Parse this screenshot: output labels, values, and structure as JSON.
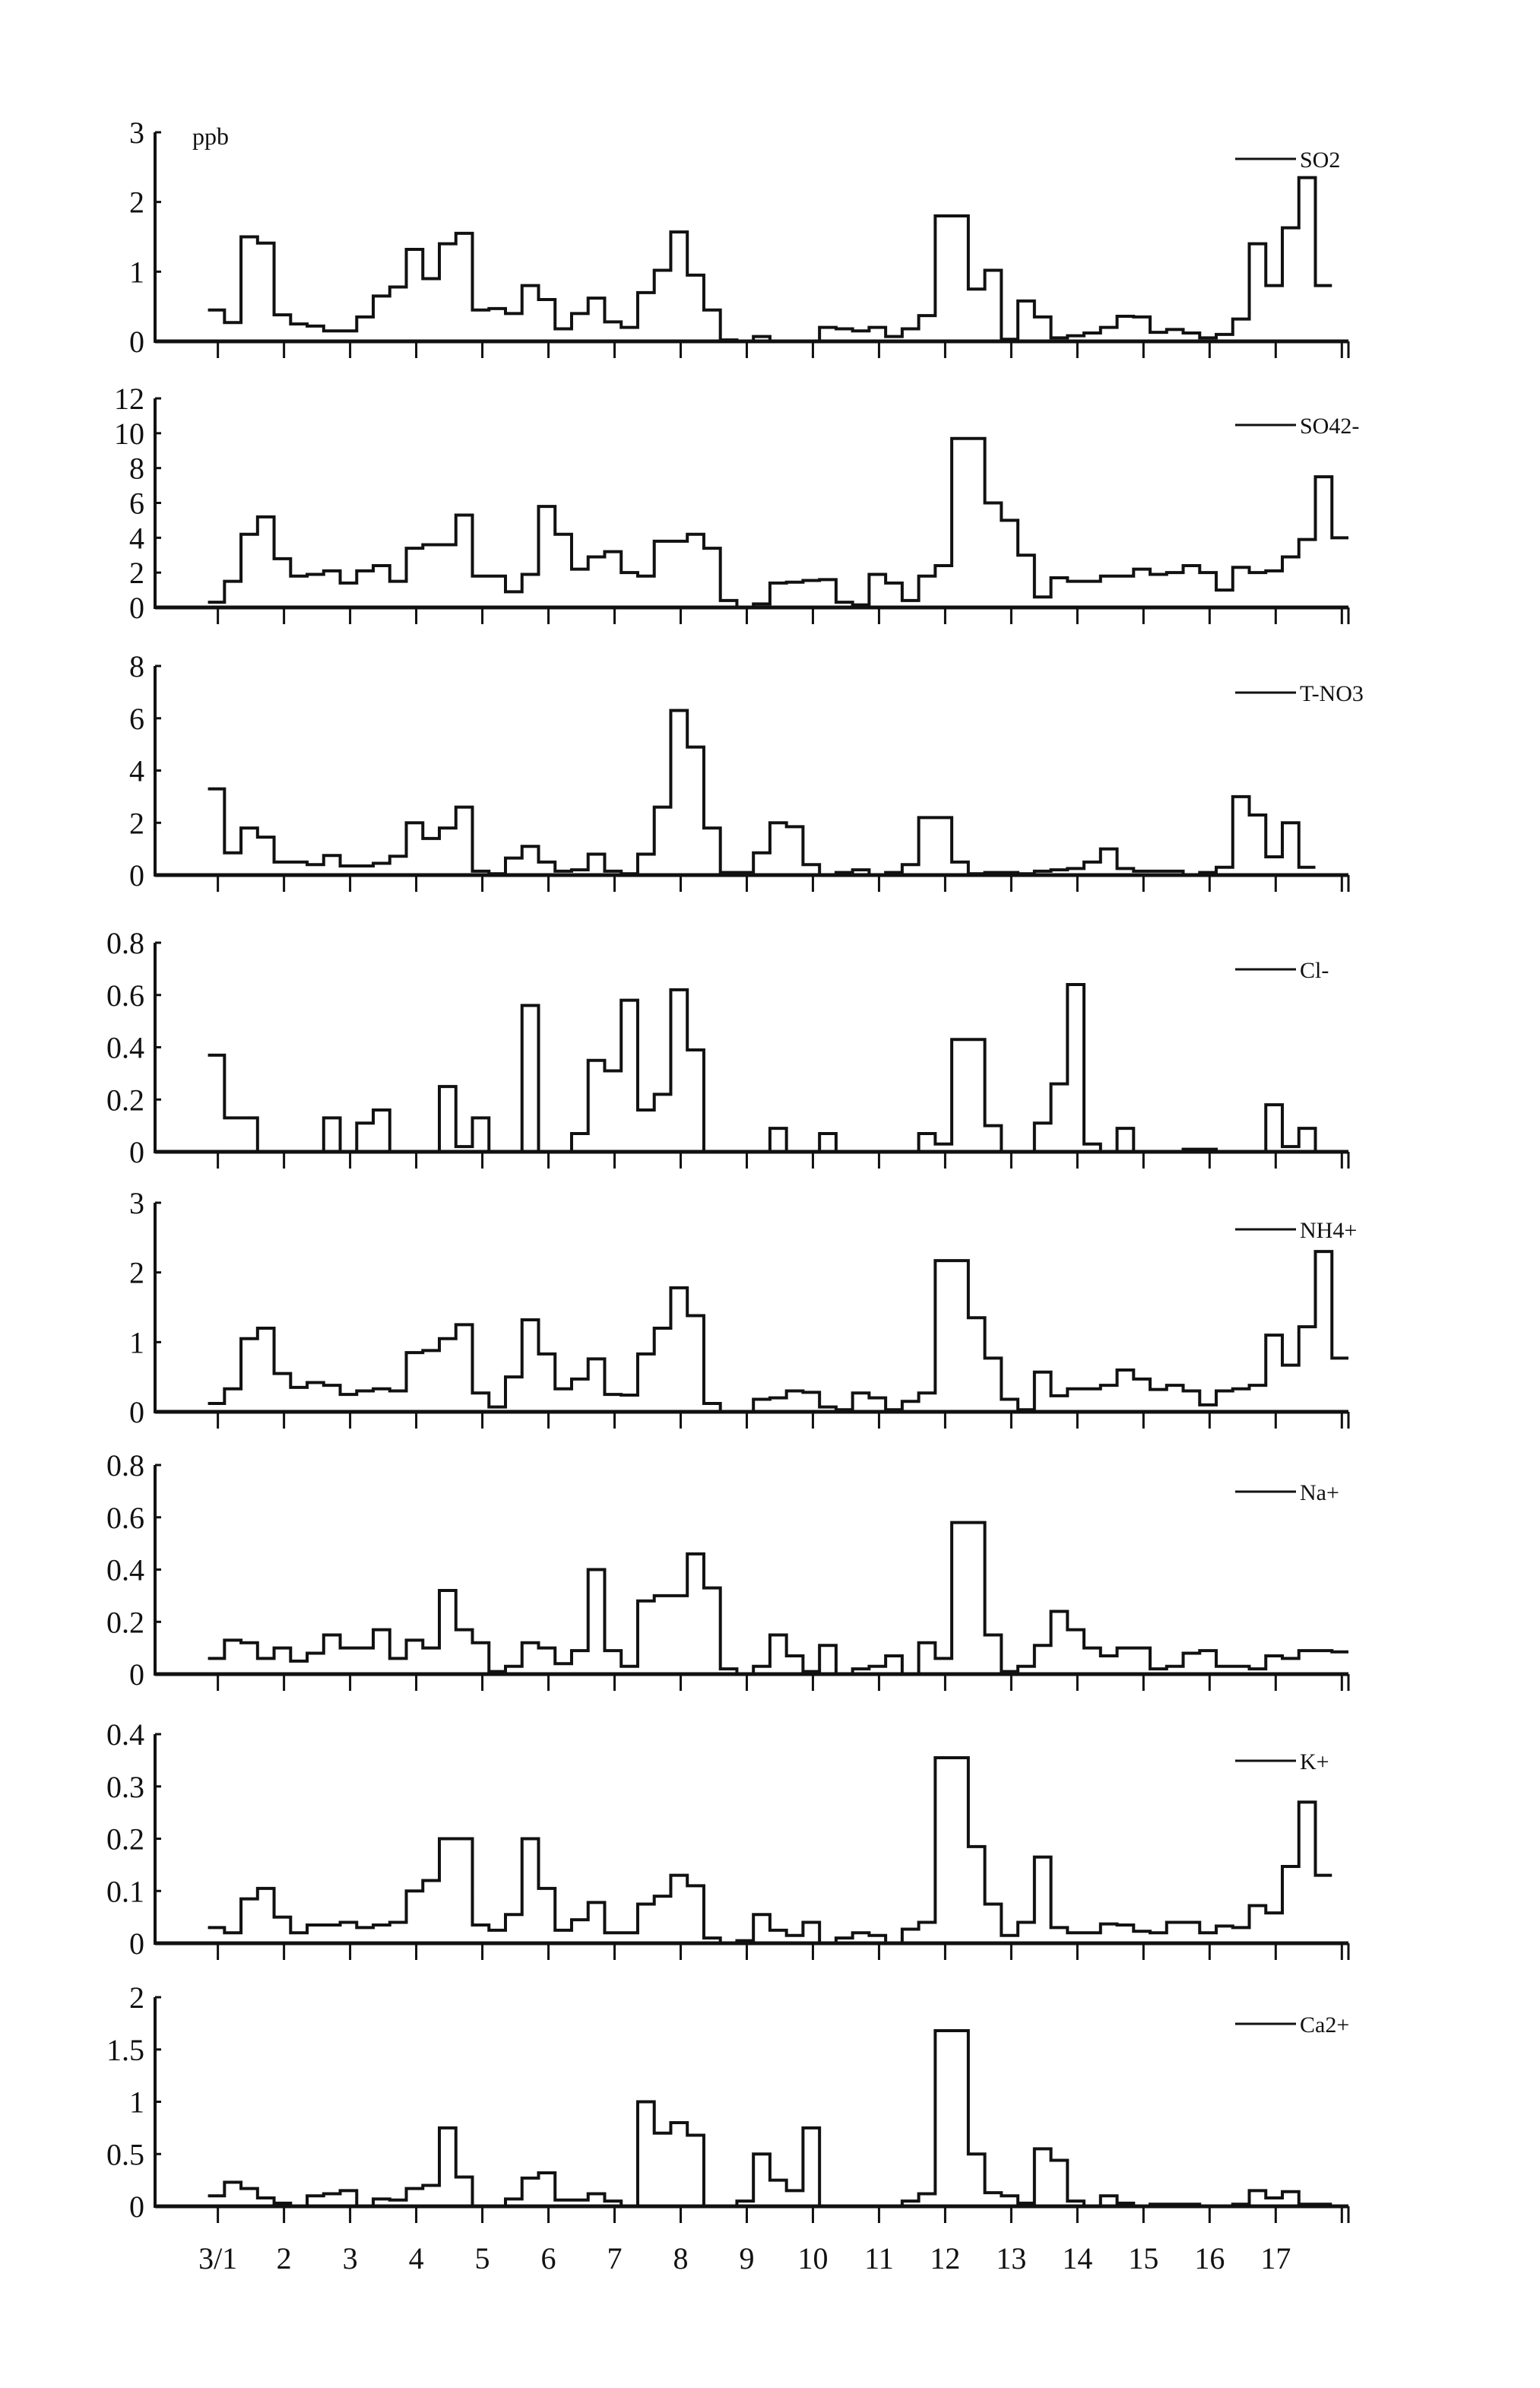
{
  "chart_data": {
    "type": "line",
    "style": "step",
    "y_unit_label": "ppb",
    "x_tick_labels": [
      "3/1",
      "2",
      "3",
      "4",
      "5",
      "6",
      "7",
      "8",
      "9",
      "10",
      "11",
      "12",
      "13",
      "14",
      "15",
      "16",
      "17"
    ],
    "x_ticks": [
      1,
      2,
      3,
      4,
      5,
      6,
      7,
      8,
      9,
      10,
      11,
      12,
      13,
      14,
      15,
      16,
      17,
      18
    ],
    "xlim": [
      0.05,
      18.1
    ],
    "x_start": 0.85,
    "x_step_days": 0.25,
    "grid": false,
    "legend_placement": "top-right",
    "line_color": "#111111",
    "panels": [
      {
        "name": "SO2",
        "ylim": [
          0,
          3
        ],
        "yticks": [
          0,
          1,
          2,
          3
        ],
        "ytick_labels": [
          "0",
          "1",
          "2",
          "3"
        ],
        "values": [
          0.45,
          0.27,
          1.5,
          1.41,
          0.38,
          0.25,
          0.22,
          0.15,
          0.15,
          0.35,
          0.65,
          0.78,
          1.32,
          0.9,
          1.4,
          1.55,
          0.45,
          0.47,
          0.4,
          0.8,
          0.6,
          0.18,
          0.4,
          0.62,
          0.28,
          0.2,
          0.7,
          1.02,
          1.57,
          0.95,
          0.45,
          0.02,
          0,
          0.07,
          0,
          0,
          0,
          0.2,
          0.18,
          0.15,
          0.2,
          0.07,
          0.18,
          0.37,
          1.8,
          1.8,
          0.75,
          1.02,
          0.03,
          0.58,
          0.35,
          0.05,
          0.08,
          0.12,
          0.2,
          0.36,
          0.35,
          0.13,
          0.17,
          0.12,
          0.05,
          0.1,
          0.32,
          1.4,
          0.8,
          1.63,
          2.35,
          0.8
        ]
      },
      {
        "name": "SO42-",
        "ylim": [
          0,
          12
        ],
        "yticks": [
          0,
          2,
          4,
          6,
          8,
          10,
          12
        ],
        "ytick_labels": [
          "0",
          "2",
          "4",
          "6",
          "8",
          "10",
          "12"
        ],
        "values": [
          0.3,
          1.5,
          4.2,
          5.2,
          2.8,
          1.8,
          1.9,
          2.1,
          1.4,
          2.1,
          2.4,
          1.5,
          3.4,
          3.6,
          3.6,
          5.3,
          1.8,
          1.8,
          0.9,
          1.9,
          5.8,
          4.2,
          2.2,
          2.9,
          3.2,
          2.0,
          1.8,
          3.8,
          3.8,
          4.2,
          3.4,
          0.4,
          0,
          0.2,
          1.4,
          1.45,
          1.55,
          1.6,
          0.3,
          0.15,
          1.9,
          1.4,
          0.4,
          1.8,
          2.4,
          9.7,
          9.7,
          6.0,
          5.0,
          3.0,
          0.6,
          1.7,
          1.5,
          1.5,
          1.8,
          1.8,
          2.2,
          1.9,
          2.0,
          2.4,
          2.0,
          1.0,
          2.3,
          2.0,
          2.1,
          2.9,
          3.9,
          7.5,
          4.0
        ]
      },
      {
        "name": "T-NO3",
        "ylim": [
          0,
          8
        ],
        "yticks": [
          0,
          2,
          4,
          6,
          8
        ],
        "ytick_labels": [
          "0",
          "2",
          "4",
          "6",
          "8"
        ],
        "values": [
          3.3,
          0.85,
          1.8,
          1.45,
          0.5,
          0.5,
          0.4,
          0.75,
          0.35,
          0.35,
          0.45,
          0.72,
          2.0,
          1.4,
          1.8,
          2.6,
          0.15,
          0.05,
          0.65,
          1.1,
          0.5,
          0.15,
          0.2,
          0.8,
          0.15,
          0.05,
          0.8,
          2.6,
          6.3,
          4.9,
          1.8,
          0.1,
          0.1,
          0.85,
          2.0,
          1.85,
          0.4,
          0.0,
          0.1,
          0.2,
          0.0,
          0.1,
          0.4,
          2.2,
          2.2,
          0.5,
          0.05,
          0.1,
          0.1,
          0.05,
          0.15,
          0.2,
          0.25,
          0.5,
          1.0,
          0.25,
          0.15,
          0.15,
          0.15,
          0.0,
          0.1,
          0.3,
          3.0,
          2.3,
          0.7,
          2.0,
          0.3
        ]
      },
      {
        "name": "Cl-",
        "ylim": [
          0,
          0.8
        ],
        "yticks": [
          0,
          0.2,
          0.4,
          0.6,
          0.8
        ],
        "ytick_labels": [
          "0",
          "0.2",
          "0.4",
          "0.6",
          "0.8"
        ],
        "values": [
          0.37,
          0.13,
          0.13,
          0,
          0,
          0,
          0,
          0.13,
          0,
          0.11,
          0.16,
          0,
          0,
          0,
          0.25,
          0.02,
          0.13,
          0,
          0,
          0.56,
          0,
          0,
          0.07,
          0.35,
          0.31,
          0.58,
          0.16,
          0.22,
          0.62,
          0.39,
          0,
          0,
          0,
          0,
          0.09,
          0,
          0,
          0.07,
          0,
          0,
          0,
          0,
          0,
          0.07,
          0.03,
          0.43,
          0.43,
          0.1,
          0,
          0,
          0.11,
          0.26,
          0.64,
          0.03,
          0,
          0.09,
          0,
          0,
          0,
          0.01,
          0.01,
          0,
          0,
          0,
          0.18,
          0.02,
          0.09,
          0,
          0
        ]
      },
      {
        "name": "NH4+",
        "ylim": [
          0,
          3
        ],
        "yticks": [
          0,
          1,
          2,
          3
        ],
        "ytick_labels": [
          "0",
          "1",
          "2",
          "3"
        ],
        "values": [
          0.12,
          0.33,
          1.05,
          1.2,
          0.55,
          0.35,
          0.42,
          0.38,
          0.25,
          0.3,
          0.33,
          0.3,
          0.85,
          0.88,
          1.05,
          1.25,
          0.27,
          0.07,
          0.5,
          1.32,
          0.83,
          0.33,
          0.47,
          0.76,
          0.25,
          0.24,
          0.83,
          1.2,
          1.78,
          1.38,
          0.12,
          0,
          0,
          0.18,
          0.2,
          0.3,
          0.28,
          0.07,
          0.03,
          0.27,
          0.2,
          0.03,
          0.15,
          0.27,
          2.17,
          2.17,
          1.35,
          0.77,
          0.18,
          0.03,
          0.57,
          0.23,
          0.33,
          0.33,
          0.38,
          0.6,
          0.47,
          0.32,
          0.38,
          0.3,
          0.1,
          0.3,
          0.33,
          0.38,
          1.1,
          0.67,
          1.22,
          2.3,
          0.77
        ]
      },
      {
        "name": "Na+",
        "ylim": [
          0,
          0.8
        ],
        "yticks": [
          0,
          0.2,
          0.4,
          0.6,
          0.8
        ],
        "ytick_labels": [
          "0",
          "0.2",
          "0.4",
          "0.6",
          "0.8"
        ],
        "values": [
          0.06,
          0.13,
          0.12,
          0.06,
          0.1,
          0.05,
          0.08,
          0.15,
          0.1,
          0.1,
          0.17,
          0.06,
          0.13,
          0.1,
          0.32,
          0.17,
          0.12,
          0.01,
          0.03,
          0.12,
          0.1,
          0.04,
          0.09,
          0.4,
          0.09,
          0.03,
          0.28,
          0.3,
          0.3,
          0.46,
          0.33,
          0.02,
          0,
          0.03,
          0.15,
          0.07,
          0.01,
          0.11,
          0,
          0.02,
          0.03,
          0.07,
          0,
          0.12,
          0.06,
          0.58,
          0.58,
          0.15,
          0.01,
          0.03,
          0.11,
          0.24,
          0.17,
          0.1,
          0.07,
          0.1,
          0.1,
          0.02,
          0.03,
          0.08,
          0.09,
          0.03,
          0.03,
          0.02,
          0.07,
          0.06,
          0.09,
          0.09,
          0.085
        ]
      },
      {
        "name": "K+",
        "ylim": [
          0,
          0.4
        ],
        "yticks": [
          0,
          0.1,
          0.2,
          0.3,
          0.4
        ],
        "ytick_labels": [
          "0",
          "0.1",
          "0.2",
          "0.3",
          "0.4"
        ],
        "values": [
          0.03,
          0.02,
          0.085,
          0.105,
          0.05,
          0.02,
          0.035,
          0.035,
          0.04,
          0.03,
          0.035,
          0.04,
          0.1,
          0.12,
          0.2,
          0.2,
          0.035,
          0.025,
          0.055,
          0.2,
          0.105,
          0.025,
          0.045,
          0.078,
          0.02,
          0.02,
          0.075,
          0.09,
          0.13,
          0.11,
          0.01,
          0,
          0.005,
          0.055,
          0.025,
          0.015,
          0.04,
          0,
          0.01,
          0.02,
          0.015,
          0,
          0.027,
          0.04,
          0.355,
          0.355,
          0.185,
          0.075,
          0.015,
          0.04,
          0.165,
          0.03,
          0.02,
          0.02,
          0.037,
          0.035,
          0.023,
          0.02,
          0.04,
          0.04,
          0.02,
          0.033,
          0.03,
          0.072,
          0.058,
          0.147,
          0.27,
          0.13
        ]
      },
      {
        "name": "Ca2+",
        "ylim": [
          0,
          2
        ],
        "yticks": [
          0,
          0.5,
          1,
          1.5,
          2
        ],
        "ytick_labels": [
          "0",
          "0.5",
          "1",
          "1.5",
          "2"
        ],
        "values": [
          0.1,
          0.23,
          0.17,
          0.08,
          0.03,
          0,
          0.1,
          0.12,
          0.15,
          0,
          0.07,
          0.06,
          0.17,
          0.2,
          0.75,
          0.28,
          0,
          0,
          0.07,
          0.27,
          0.32,
          0.06,
          0.06,
          0.12,
          0.05,
          0,
          1.0,
          0.7,
          0.8,
          0.68,
          0,
          0,
          0.05,
          0.5,
          0.25,
          0.15,
          0.75,
          0,
          0,
          0,
          0,
          0,
          0.05,
          0.12,
          1.68,
          1.68,
          0.5,
          0.13,
          0.1,
          0.03,
          0.55,
          0.44,
          0.05,
          0,
          0.1,
          0.03,
          0,
          0.02,
          0.02,
          0.02,
          0,
          0,
          0.02,
          0.15,
          0.08,
          0.14,
          0.02,
          0.02
        ]
      }
    ]
  }
}
